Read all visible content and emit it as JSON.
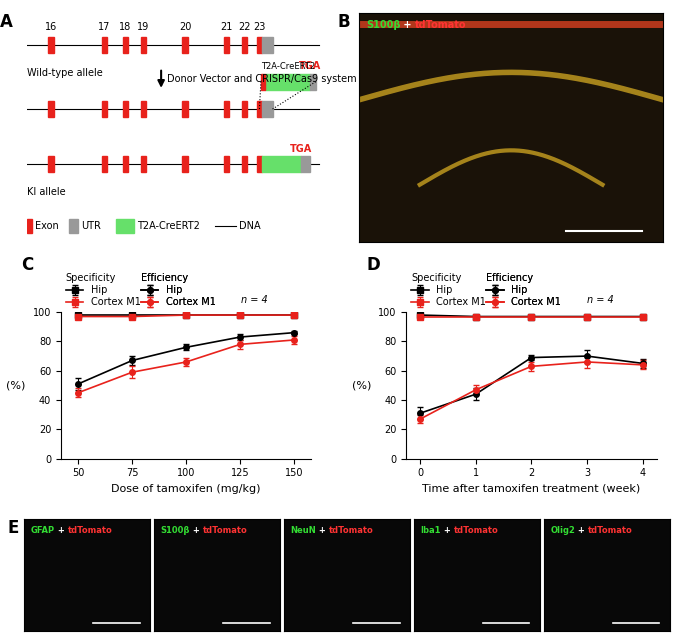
{
  "diagram": {
    "panel": "A",
    "exons": [
      "16",
      "17",
      "18",
      "19",
      "20",
      "21",
      "22",
      "23"
    ],
    "alleles": {
      "wild_type": "Wild-type allele",
      "knock_in": "KI allele"
    },
    "step": "Donor Vector and CRISPR/Cas9 system",
    "stop_codon": "TGA",
    "legend": {
      "exon": "Exon",
      "utr": "UTR",
      "cassette": "T2A-CreERT2",
      "dna": "DNA"
    }
  },
  "images": {
    "B": {
      "panel": "B",
      "stains": [
        {
          "text": "S100β",
          "color": "#33dd33"
        },
        {
          "text": " + ",
          "color": "#ffffff"
        },
        {
          "text": "tdTomato",
          "color": "#ff3333"
        }
      ]
    },
    "E": {
      "panel": "E",
      "tiles": [
        [
          {
            "text": "GFAP",
            "color": "#33dd33"
          },
          {
            "text": " + ",
            "color": "#ffffff"
          },
          {
            "text": "tdTomato",
            "color": "#ff3333"
          }
        ],
        [
          {
            "text": "S100β",
            "color": "#33dd33"
          },
          {
            "text": " + ",
            "color": "#ffffff"
          },
          {
            "text": "tdTomato",
            "color": "#ff3333"
          }
        ],
        [
          {
            "text": "NeuN",
            "color": "#33dd33"
          },
          {
            "text": " + ",
            "color": "#ffffff"
          },
          {
            "text": "tdTomato",
            "color": "#ff3333"
          }
        ],
        [
          {
            "text": "Iba1",
            "color": "#33dd33"
          },
          {
            "text": " + ",
            "color": "#ffffff"
          },
          {
            "text": "tdTomato",
            "color": "#ff3333"
          }
        ],
        [
          {
            "text": "Olig2",
            "color": "#33dd33"
          },
          {
            "text": " + ",
            "color": "#ffffff"
          },
          {
            "text": "tdTomato",
            "color": "#ff3333"
          }
        ]
      ]
    }
  },
  "chart_data": [
    {
      "panel": "C",
      "type": "line",
      "x": [
        50,
        75,
        100,
        125,
        150
      ],
      "xlabel": "Dose of tamoxifen (mg/kg)",
      "ylabel": "(%)",
      "annotation": "n = 4",
      "xlim": [
        42,
        158
      ],
      "xticks": [
        50,
        75,
        100,
        125,
        150
      ],
      "ylim": [
        0,
        100
      ],
      "yticks": [
        0,
        20,
        40,
        60,
        80,
        100
      ],
      "series": [
        {
          "name": "Hip",
          "group": "Specificity",
          "color": "#000000",
          "marker": "square",
          "line_style": "solid",
          "values": [
            98,
            98,
            98,
            98,
            98
          ],
          "errors": [
            1,
            1,
            1,
            1,
            1
          ]
        },
        {
          "name": "Cortex M1",
          "group": "Specificity",
          "color": "#e8221c",
          "marker": "square",
          "line_style": "solid",
          "values": [
            97,
            97,
            98,
            98,
            98
          ],
          "errors": [
            1,
            1,
            1,
            1,
            1
          ]
        },
        {
          "name": "Hip",
          "group": "Efficiency",
          "color": "#000000",
          "marker": "circle",
          "line_style": "solid",
          "values": [
            51,
            67,
            76,
            83,
            86
          ],
          "errors": [
            4,
            3,
            2,
            2,
            1
          ]
        },
        {
          "name": "Cortex M1",
          "group": "Efficiency",
          "color": "#e8221c",
          "marker": "circle",
          "line_style": "solid",
          "values": [
            45,
            59,
            66,
            78,
            81
          ],
          "errors": [
            3,
            4,
            3,
            3,
            3
          ]
        }
      ]
    },
    {
      "panel": "D",
      "type": "line",
      "x": [
        0,
        1,
        2,
        3,
        4
      ],
      "xlabel": "Time after tamoxifen treatment (week)",
      "ylabel": "(%)",
      "annotation": "n = 4",
      "xlim": [
        -0.25,
        4.25
      ],
      "xticks": [
        0,
        1,
        2,
        3,
        4
      ],
      "ylim": [
        0,
        100
      ],
      "yticks": [
        0,
        20,
        40,
        60,
        80,
        100
      ],
      "series": [
        {
          "name": "Hip",
          "group": "Specificity",
          "color": "#000000",
          "marker": "square",
          "line_style": "solid",
          "values": [
            98,
            97,
            97,
            97,
            97
          ],
          "errors": [
            1,
            1,
            1,
            1,
            1
          ]
        },
        {
          "name": "Cortex M1",
          "group": "Specificity",
          "color": "#e8221c",
          "marker": "square",
          "line_style": "solid",
          "values": [
            97,
            97,
            97,
            97,
            97
          ],
          "errors": [
            1,
            1,
            1,
            1,
            1
          ]
        },
        {
          "name": "Hip",
          "group": "Efficiency",
          "color": "#000000",
          "marker": "circle",
          "line_style": "solid",
          "values": [
            31,
            44,
            69,
            70,
            65
          ],
          "errors": [
            4,
            4,
            2,
            4,
            3
          ]
        },
        {
          "name": "Cortex M1",
          "group": "Efficiency",
          "color": "#e8221c",
          "marker": "circle",
          "line_style": "solid",
          "values": [
            27,
            47,
            63,
            66,
            64
          ],
          "errors": [
            3,
            3,
            3,
            4,
            3
          ]
        }
      ]
    }
  ]
}
